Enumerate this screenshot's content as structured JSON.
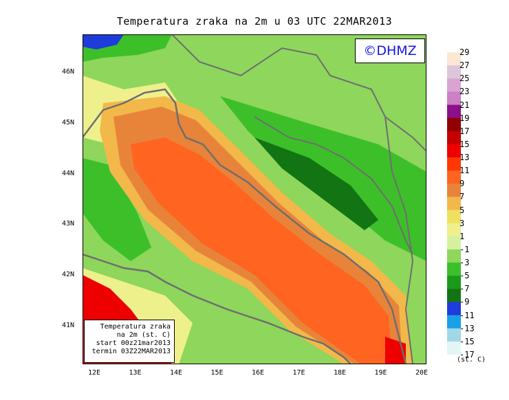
{
  "title": "Temperatura zraka na 2m u 03 UTC 22MAR2013",
  "logo_text": "©DHMZ",
  "info_box": {
    "lines": [
      "Temperatura zraka",
      "na 2m (st. C)",
      "start 00z21mar2013",
      "termin 03Z22MAR2013"
    ]
  },
  "lat_labels": [
    "46N",
    "45N",
    "44N",
    "43N",
    "42N",
    "41N"
  ],
  "lon_labels": [
    "12E",
    "13E",
    "14E",
    "15E",
    "16E",
    "17E",
    "18E",
    "19E",
    "20E"
  ],
  "legend": {
    "unit": "(st. C)",
    "labels": [
      "29",
      "27",
      "25",
      "23",
      "21",
      "19",
      "17",
      "15",
      "13",
      "11",
      "9",
      "7",
      "5",
      "3",
      "1",
      "-1",
      "-3",
      "-5",
      "-7",
      "-9",
      "-11",
      "-13",
      "-15",
      "-17"
    ],
    "colors": [
      "#fbe7d4",
      "#dcc6d9",
      "#d9a4d2",
      "#cc80c5",
      "#8c0f8c",
      "#900000",
      "#c40000",
      "#ee0000",
      "#ff3800",
      "#ff6420",
      "#e8843a",
      "#f2b84a",
      "#f0e060",
      "#eef08c",
      "#d6f0a0",
      "#8ed65c",
      "#3dbf2a",
      "#1a9a1a",
      "#137413",
      "#1e3cdc",
      "#1aa0e6",
      "#a0d8e6",
      "#e2f6f6"
    ]
  },
  "colors": {
    "sea_warm": "#ff6420",
    "sea_mid": "#e8843a",
    "coast": "#f2b84a",
    "land_light": "#8ed65c",
    "land_green": "#3dbf2a",
    "land_dark": "#137413",
    "hot": "#ee0000",
    "border": "#6e6e6e"
  }
}
